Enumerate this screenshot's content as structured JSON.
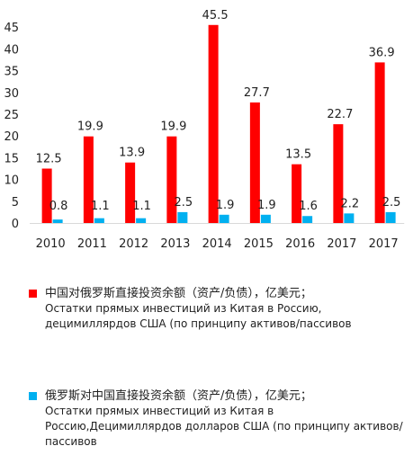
{
  "chart_data": {
    "type": "bar",
    "categories": [
      "2010",
      "2011",
      "2012",
      "2013",
      "2014",
      "2015",
      "2016",
      "2017",
      "2017"
    ],
    "series": [
      {
        "name": "中国对俄罗斯直接投资余额（资产/负债），亿美元；Остатки прямых инвестиций из Китая в Россию, децимиллярдов США (по принципу активов/пассивов",
        "color": "#ff0000",
        "values": [
          12.5,
          19.9,
          13.9,
          19.9,
          45.5,
          27.7,
          13.5,
          22.7,
          36.9
        ],
        "labels": [
          "12.5",
          "19.9",
          "13.9",
          "19.9",
          "45.5",
          "27.7",
          "13.5",
          "22.7",
          "36.9"
        ]
      },
      {
        "name": "俄罗斯对中国直接投资余额（资产/负债），亿美元；Остатки прямых инвестиций из Китая в Россию,Децимиллярдов долларов США (по принципу активов/пассивов",
        "color": "#00b0f0",
        "values": [
          0.8,
          1.1,
          1.1,
          2.5,
          1.9,
          1.9,
          1.6,
          2.2,
          2.5
        ],
        "labels": [
          "0.8",
          "1.1",
          "1.1",
          "2.5",
          "1.9",
          "1.9",
          "1.6",
          "2.2",
          "2.5"
        ]
      }
    ],
    "yticks": [
      "0",
      "5",
      "10",
      "15",
      "20",
      "25",
      "30",
      "35",
      "40",
      "45"
    ],
    "ylim": [
      0,
      50
    ],
    "grid": false,
    "legend_position": "bottom"
  },
  "legend": [
    {
      "color": "#ff0000",
      "cn": "中国对俄罗斯直接投资余额（资产/负债），亿美元；",
      "ru": "Остатки прямых инвестиций из Китая в Россию, децимиллярдов США (по принципу активов/пассивов"
    },
    {
      "color": "#00b0f0",
      "cn": "俄罗斯对中国直接投资余额（资产/负债），亿美元；",
      "ru": "Остатки прямых инвестиций из Китая в Россию,Децимиллярдов долларов США (по принципу активов/пассивов"
    }
  ]
}
